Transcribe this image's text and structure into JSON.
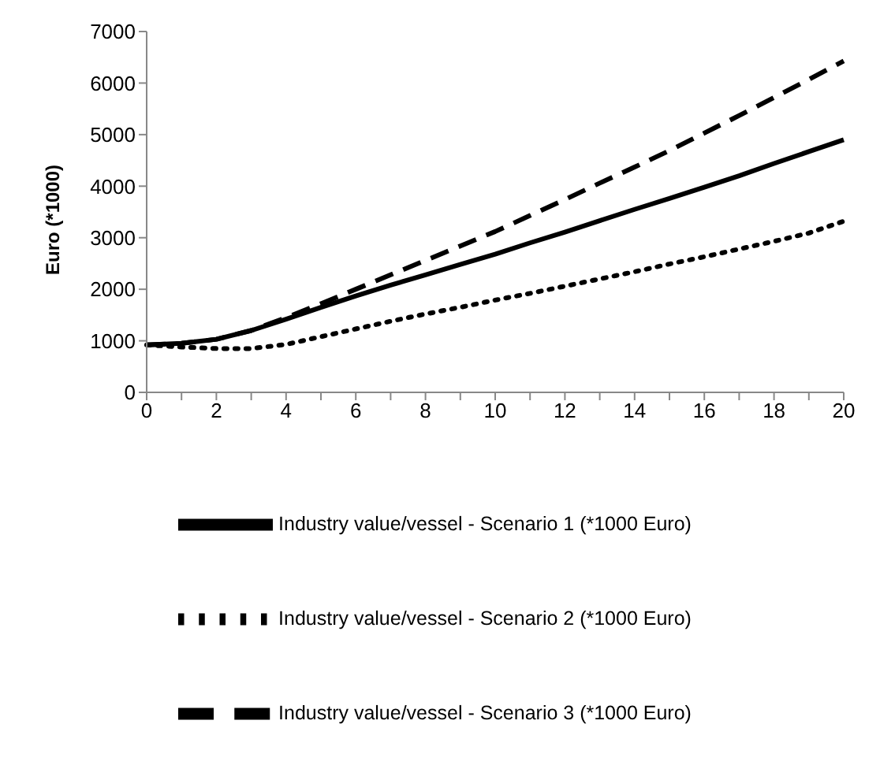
{
  "chart_data": {
    "type": "line",
    "ylabel": "Euro (*1000)",
    "categories": [
      "0",
      null,
      "2",
      null,
      "4",
      null,
      "6",
      null,
      "8",
      null,
      "10",
      null,
      "12",
      null,
      "14",
      null,
      "16",
      null,
      "18",
      null,
      "20"
    ],
    "ylim": [
      0,
      7000
    ],
    "yticks": [
      0,
      1000,
      2000,
      3000,
      4000,
      5000,
      6000,
      7000
    ],
    "grid": false,
    "legend": "bottom",
    "marker": "none",
    "series": [
      {
        "name": "Industry value/vessel - Scenario 1 (*1000 Euro)",
        "color": "#000000",
        "line_style": "solid",
        "values": [
          920,
          950,
          1030,
          1200,
          1420,
          1650,
          1870,
          2080,
          2280,
          2480,
          2680,
          2900,
          3110,
          3330,
          3550,
          3760,
          3980,
          4200,
          4440,
          4670,
          4900
        ]
      },
      {
        "name": "Industry value/vessel - Scenario 2 (*1000 Euro)",
        "color": "#000000",
        "line_style": "dotted",
        "values": [
          920,
          880,
          850,
          850,
          930,
          1080,
          1230,
          1380,
          1520,
          1650,
          1790,
          1920,
          2060,
          2200,
          2340,
          2490,
          2630,
          2780,
          2930,
          3090,
          3320
        ]
      },
      {
        "name": "Industry value/vessel - Scenario 3 (*1000 Euro)",
        "color": "#000000",
        "line_style": "dashed",
        "values": [
          920,
          950,
          1030,
          1200,
          1450,
          1720,
          2000,
          2280,
          2560,
          2840,
          3120,
          3430,
          3740,
          4060,
          4370,
          4690,
          5030,
          5370,
          5720,
          6070,
          6430
        ]
      }
    ]
  }
}
